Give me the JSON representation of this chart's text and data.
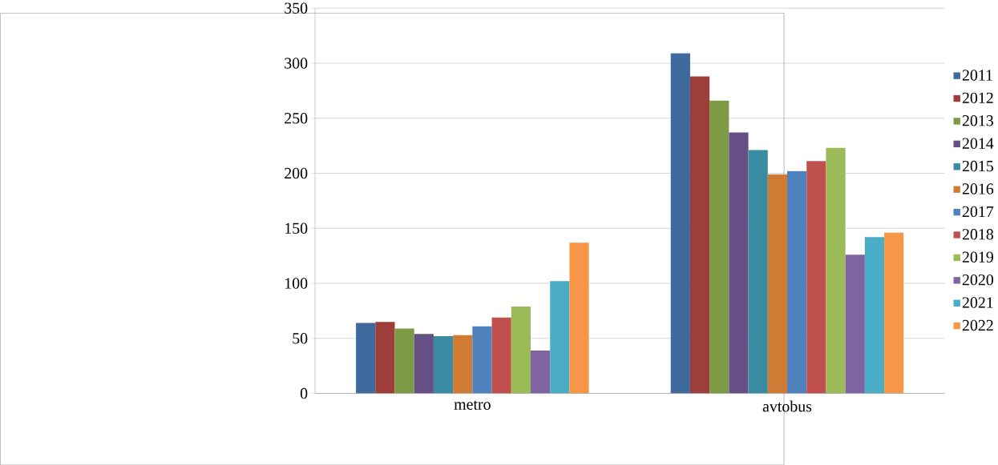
{
  "chart_data": {
    "type": "bar",
    "categories": [
      "metro",
      "avtobus"
    ],
    "series": [
      {
        "name": "2011",
        "color": "#3e6a9d",
        "values": [
          64,
          309
        ]
      },
      {
        "name": "2012",
        "color": "#9e3e3b",
        "values": [
          65,
          288
        ]
      },
      {
        "name": "2013",
        "color": "#7e9a46",
        "values": [
          59,
          266
        ]
      },
      {
        "name": "2014",
        "color": "#664f85",
        "values": [
          54,
          237
        ]
      },
      {
        "name": "2015",
        "color": "#3a8ba2",
        "values": [
          52,
          221
        ]
      },
      {
        "name": "2016",
        "color": "#cf7b36",
        "values": [
          53,
          199
        ]
      },
      {
        "name": "2017",
        "color": "#4f81bd",
        "values": [
          61,
          202
        ]
      },
      {
        "name": "2018",
        "color": "#c0504d",
        "values": [
          69,
          211
        ]
      },
      {
        "name": "2019",
        "color": "#9bbb59",
        "values": [
          79,
          223
        ]
      },
      {
        "name": "2020",
        "color": "#8064a2",
        "values": [
          39,
          126
        ]
      },
      {
        "name": "2021",
        "color": "#4bacc6",
        "values": [
          102,
          142
        ]
      },
      {
        "name": "2022",
        "color": "#f79646",
        "values": [
          137,
          146
        ]
      }
    ],
    "ylim": [
      0,
      350
    ],
    "yticks": [
      0,
      50,
      100,
      150,
      200,
      250,
      300,
      350
    ],
    "grid": "y",
    "legend": "right"
  }
}
